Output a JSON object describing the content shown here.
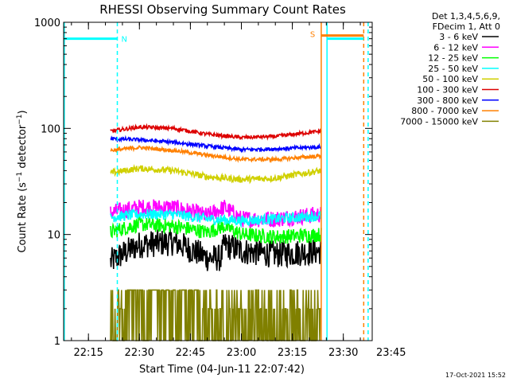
{
  "chart_data": {
    "type": "line",
    "title": "RHESSI Observing Summary Count Rates",
    "xlabel": "Start Time (04-Jun-11 22:07:42)",
    "ylabel": "Count Rate (s⁻¹ detector⁻¹)",
    "ylabel_parts": {
      "main": "Count Rate (s",
      "exp1": "−1",
      "mid": " detector",
      "exp2": "−1",
      "end": ")"
    },
    "yscale": "log",
    "ylim": [
      1,
      1000
    ],
    "xlim_minutes": [
      7.7,
      98.5
    ],
    "x_ticks": [
      {
        "label": "22:15",
        "min": 15
      },
      {
        "label": "22:30",
        "min": 30
      },
      {
        "label": "22:45",
        "min": 45
      },
      {
        "label": "23:00",
        "min": 60
      },
      {
        "label": "23:15",
        "min": 75
      },
      {
        "label": "23:30",
        "min": 90
      },
      {
        "label": "23:45",
        "min": 105
      }
    ],
    "y_ticks": [
      {
        "label": "1",
        "value": 1
      },
      {
        "label": "10",
        "value": 10
      },
      {
        "label": "100",
        "value": 100
      },
      {
        "label": "1000",
        "value": 1000
      }
    ],
    "legend_header": [
      "Det 1,3,4,5,6,9,",
      "FDecim 1, Att 0"
    ],
    "legend_position": "top-right",
    "data_range_minutes": [
      21.5,
      83.5
    ],
    "series": [
      {
        "name": "3 - 6 keV",
        "color": "#000000",
        "values": [
          [
            21.5,
            5.5
          ],
          [
            30,
            8
          ],
          [
            40,
            8.5
          ],
          [
            50,
            6
          ],
          [
            54,
            6
          ],
          [
            55,
            8
          ],
          [
            60,
            7
          ],
          [
            70,
            6.5
          ],
          [
            83.5,
            7
          ]
        ]
      },
      {
        "name": "6 - 12 keV",
        "color": "#ff00ff",
        "values": [
          [
            21.5,
            16
          ],
          [
            30,
            18
          ],
          [
            40,
            18
          ],
          [
            50,
            15
          ],
          [
            55,
            18
          ],
          [
            60,
            14
          ],
          [
            70,
            14
          ],
          [
            83.5,
            15.5
          ]
        ]
      },
      {
        "name": "12 - 25 keV",
        "color": "#00ff00",
        "values": [
          [
            21.5,
            10.5
          ],
          [
            30,
            12.5
          ],
          [
            40,
            12
          ],
          [
            50,
            10.5
          ],
          [
            55,
            12
          ],
          [
            60,
            10
          ],
          [
            70,
            9.5
          ],
          [
            83.5,
            10
          ]
        ]
      },
      {
        "name": "25 - 50 keV",
        "color": "#00ffff",
        "values": [
          [
            21.5,
            14.5
          ],
          [
            30,
            15.5
          ],
          [
            40,
            15.5
          ],
          [
            50,
            14
          ],
          [
            60,
            13.5
          ],
          [
            70,
            14
          ],
          [
            83.5,
            15
          ]
        ]
      },
      {
        "name": "50 - 100 keV",
        "color": "#d0d000",
        "values": [
          [
            21.5,
            38
          ],
          [
            30,
            42
          ],
          [
            40,
            40
          ],
          [
            50,
            35
          ],
          [
            60,
            33
          ],
          [
            70,
            34
          ],
          [
            83.5,
            40
          ]
        ]
      },
      {
        "name": "100 - 300 keV",
        "color": "#dd0000",
        "values": [
          [
            21.5,
            94
          ],
          [
            30,
            103
          ],
          [
            40,
            100
          ],
          [
            50,
            88
          ],
          [
            60,
            82
          ],
          [
            70,
            84
          ],
          [
            83.5,
            94
          ]
        ]
      },
      {
        "name": "300 - 800 keV",
        "color": "#0000ff",
        "values": [
          [
            21.5,
            80
          ],
          [
            30,
            78
          ],
          [
            40,
            74
          ],
          [
            50,
            68
          ],
          [
            60,
            63
          ],
          [
            70,
            64
          ],
          [
            83.5,
            67
          ]
        ]
      },
      {
        "name": "800 - 7000 keV",
        "color": "#ff8000",
        "values": [
          [
            21.5,
            62
          ],
          [
            30,
            66
          ],
          [
            40,
            62
          ],
          [
            50,
            56
          ],
          [
            60,
            51
          ],
          [
            70,
            51
          ],
          [
            83.5,
            55
          ]
        ]
      },
      {
        "name": "7000 - 15000 keV",
        "color": "#808000",
        "values": [
          [
            21.5,
            2
          ],
          [
            29,
            3
          ],
          [
            60,
            2
          ],
          [
            83.5,
            3
          ]
        ]
      }
    ],
    "annotations": [
      {
        "label": "N",
        "color": "#00ffff",
        "level": 700,
        "from_min": 7.7,
        "to_min": 23.5
      },
      {
        "label": "S",
        "color": "#ff8000",
        "level": 750,
        "from_min": 83.5,
        "to_min": 96
      },
      {
        "label": "",
        "color": "#00ffff",
        "level": 700,
        "from_min": 85.2,
        "to_min": 96
      }
    ],
    "vertical_markers": [
      {
        "min": 7.9,
        "color": "#00ffff",
        "style": "solid"
      },
      {
        "min": 23.5,
        "color": "#00ffff",
        "style": "dashed"
      },
      {
        "min": 83.5,
        "color": "#ff8000",
        "style": "solid"
      },
      {
        "min": 85.2,
        "color": "#00ffff",
        "style": "solid"
      },
      {
        "min": 96,
        "color": "#ff8000",
        "style": "dashed"
      },
      {
        "min": 97.3,
        "color": "#00ffff",
        "style": "dashed"
      }
    ],
    "timestamp": "17-Oct-2021 15:52"
  }
}
